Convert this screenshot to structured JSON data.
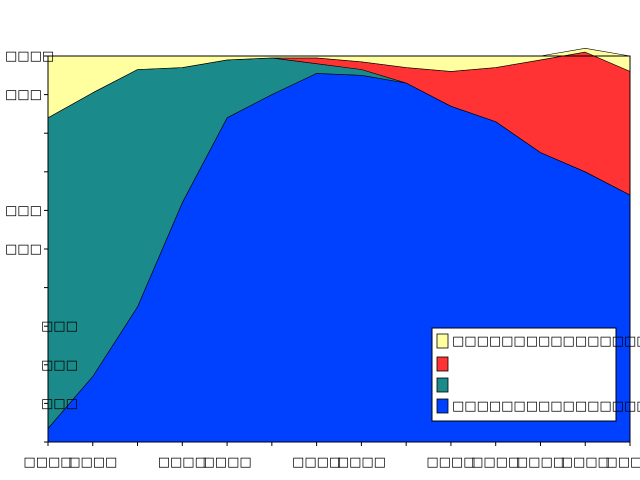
{
  "chart_data": {
    "type": "area",
    "stacked": true,
    "normalized": true,
    "title": "",
    "xlabel": "",
    "ylabel": "",
    "ylim": [
      0,
      100
    ],
    "grid": false,
    "legend_placement": "bottom-right",
    "x": [
      1,
      2,
      3,
      4,
      5,
      6,
      7,
      8,
      9,
      10,
      11,
      12,
      13,
      14
    ],
    "series": [
      {
        "color": "#0041FF",
        "label_text": "□□□□□□□□□□□□□□□□□□□□□□□□□□□",
        "values": [
          3.5,
          17,
          35,
          62,
          84,
          90,
          95.5,
          95,
          93,
          87,
          83,
          75,
          70,
          64
        ]
      },
      {
        "color": "#1A8A8A",
        "label_text": "",
        "values": [
          80.5,
          73.5,
          61.5,
          35,
          15,
          9.5,
          2.5,
          1.5,
          0,
          0,
          0,
          0,
          0,
          0
        ]
      },
      {
        "color": "#FF3333",
        "label_text": "",
        "values": [
          0,
          0,
          0,
          0,
          0,
          0,
          1.5,
          2,
          4,
          9,
          14,
          24,
          31,
          32
        ]
      },
      {
        "color": "#FFFFA0",
        "label_text": "□□□□□□□□□□□□□□□□□□□□□□□□□□",
        "values": [
          16,
          9.5,
          3.5,
          3,
          1,
          0.5,
          0.5,
          1.5,
          3,
          4,
          3,
          1,
          1,
          4
        ]
      }
    ],
    "y_tick_labels": [
      {
        "value": 100,
        "text": "□□□□"
      },
      {
        "value": 90,
        "text": "□□□"
      },
      {
        "value": 60,
        "text": "□□□"
      },
      {
        "value": 50,
        "text": "□□□"
      },
      {
        "value": 30,
        "text": "□□□"
      },
      {
        "value": 20,
        "text": "□□□"
      },
      {
        "value": 10,
        "text": "□□□"
      }
    ],
    "x_tick_labels": [
      {
        "value": 1,
        "text": "□□□□"
      },
      {
        "value": 2,
        "text": "□□□□"
      },
      {
        "value": 4,
        "text": "□□□□"
      },
      {
        "value": 5,
        "text": "□□□□"
      },
      {
        "value": 7,
        "text": "□□□□"
      },
      {
        "value": 8,
        "text": "□□□□"
      },
      {
        "value": 10,
        "text": "□□□□"
      },
      {
        "value": 11,
        "text": "□□□□"
      },
      {
        "value": 12,
        "text": "□□□□"
      },
      {
        "value": 13,
        "text": "□□□□"
      },
      {
        "value": 14,
        "text": "□□□□"
      }
    ]
  }
}
